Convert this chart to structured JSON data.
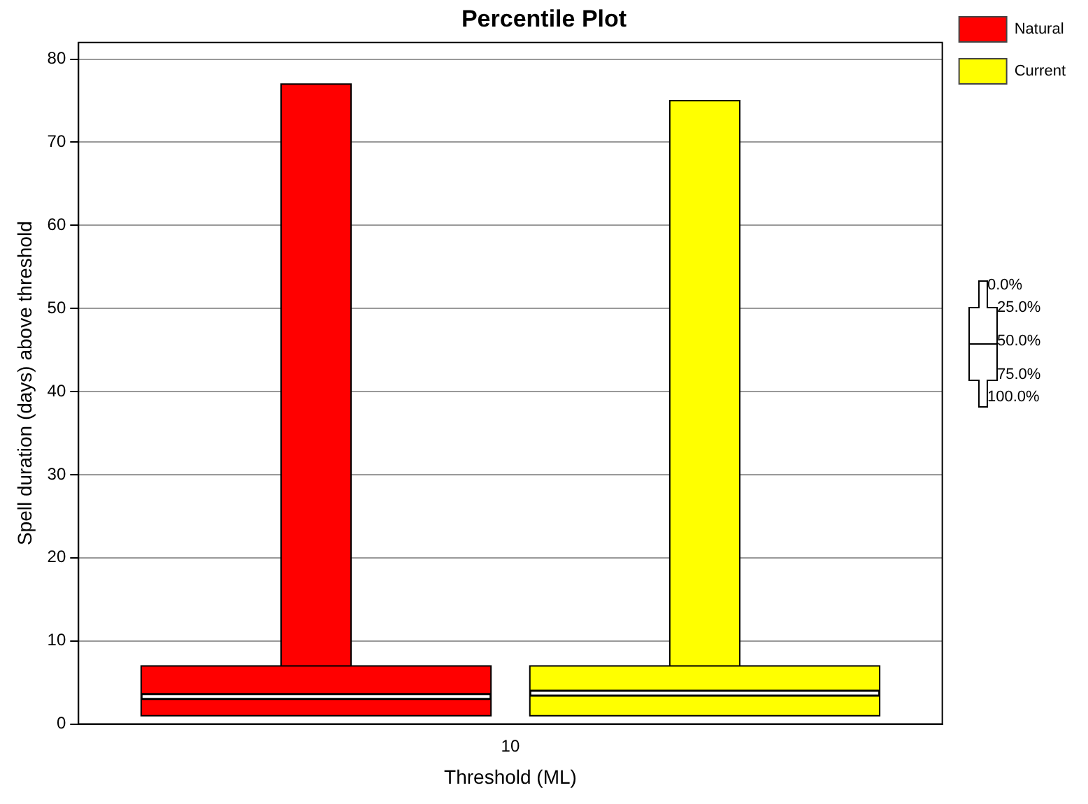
{
  "chart_data": {
    "type": "box",
    "title": "Percentile Plot",
    "xlabel": "Threshold (ML)",
    "ylabel": "Spell duration (days) above threshold",
    "categories": [
      "10"
    ],
    "series": [
      {
        "name": "Natural",
        "color": "#ff0000",
        "boxes": [
          {
            "low": 1,
            "q1": 1,
            "median": 3.3,
            "q3": 7,
            "high": 77
          }
        ]
      },
      {
        "name": "Current",
        "color": "#ffff00",
        "boxes": [
          {
            "low": 1,
            "q1": 1,
            "median": 3.7,
            "q3": 7,
            "high": 75
          }
        ]
      }
    ],
    "ylim": [
      0,
      82
    ],
    "yticks": [
      0,
      10,
      20,
      30,
      40,
      50,
      60,
      70,
      80
    ],
    "grid": "y",
    "legend": "top right",
    "annotations": [
      "0.0%",
      "25.0%",
      "50.0%",
      "75.0%",
      "100.0%"
    ]
  }
}
